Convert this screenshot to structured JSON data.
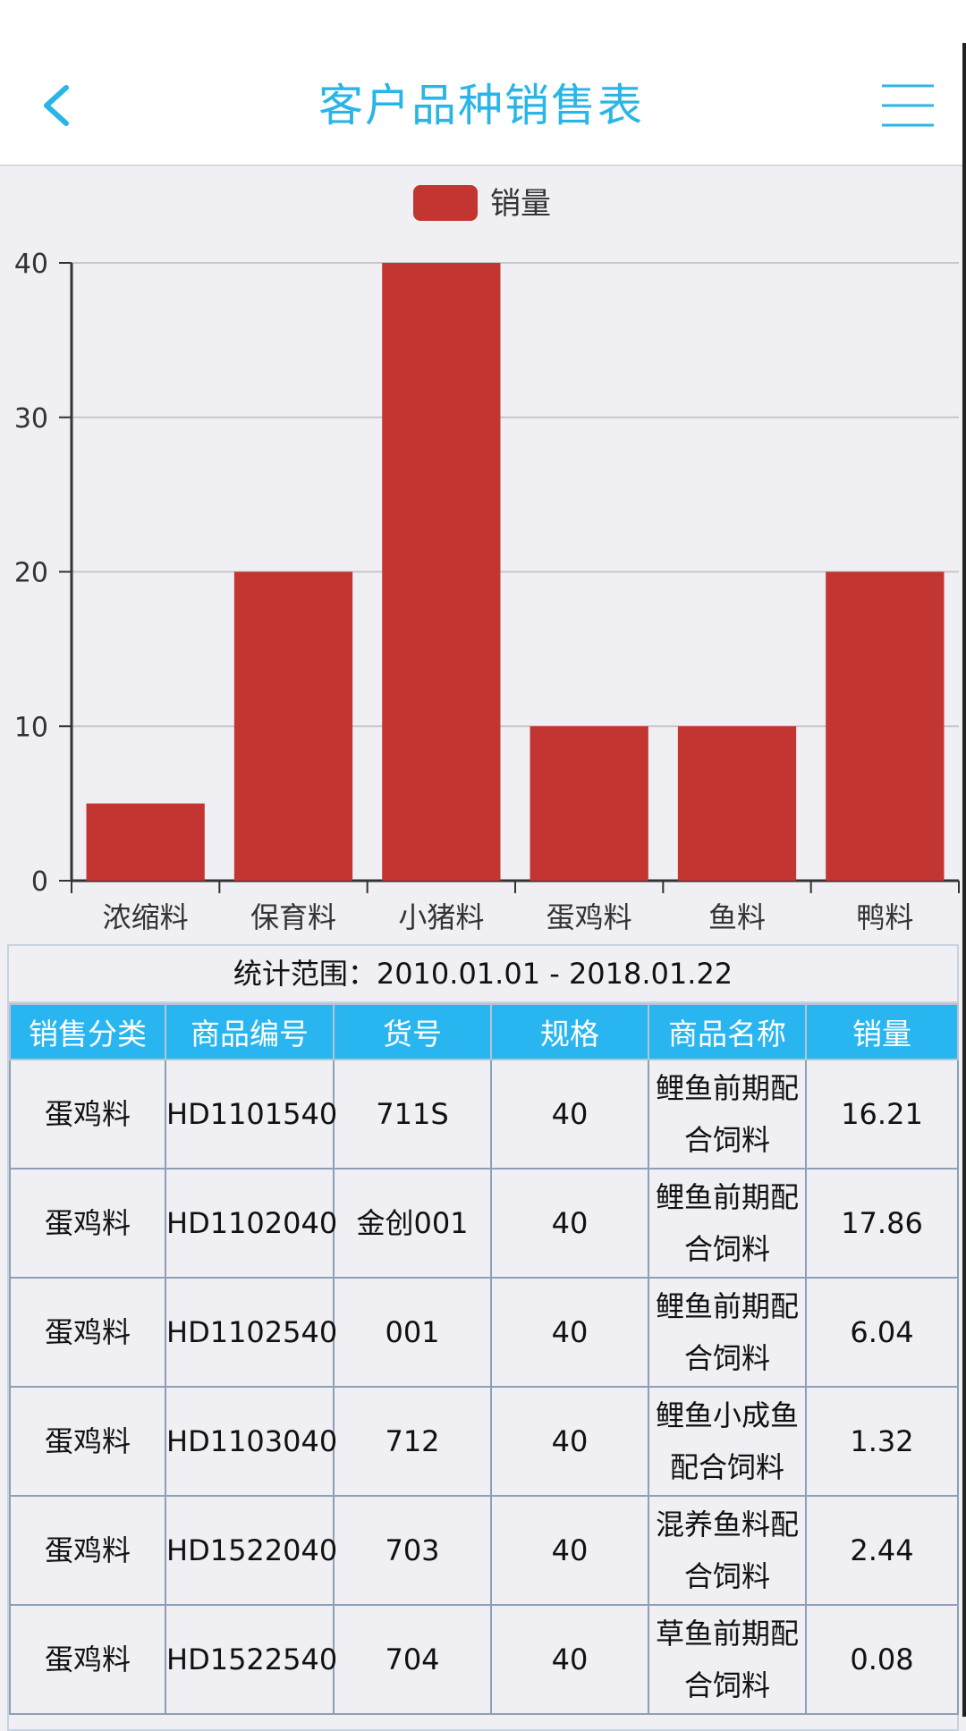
{
  "header": {
    "title": "客户品种销售表"
  },
  "icons": {
    "back": "chevron-left-icon",
    "menu": "hamburger-menu-icon"
  },
  "colors": {
    "accent": "#29b6e6",
    "bar": "#c23531",
    "table_header": "#29b6f0"
  },
  "chart_data": {
    "type": "bar",
    "categories": [
      "浓缩料",
      "保育料",
      "小猪料",
      "蛋鸡料",
      "鱼料",
      "鸭料"
    ],
    "series": [
      {
        "name": "销量",
        "values": [
          5,
          20,
          40,
          10,
          10,
          20
        ]
      }
    ],
    "ylim": [
      0,
      40
    ],
    "yticks": [
      "0",
      "10",
      "20",
      "30",
      "40"
    ],
    "legend": "top-center",
    "grid": true
  },
  "table": {
    "range_text": "统计范围：2010.01.01 - 2018.01.22",
    "columns": [
      "销售分类",
      "商品编号",
      "货号",
      "规格",
      "商品名称",
      "销量"
    ],
    "rows": [
      {
        "category": "蛋鸡料",
        "code": "HD1101540",
        "item_no": "711S",
        "spec": "40",
        "name_line1": "鲤鱼前期配",
        "name_line2": "合饲料",
        "sales": "16.21"
      },
      {
        "category": "蛋鸡料",
        "code": "HD1102040",
        "item_no": "金创001",
        "spec": "40",
        "name_line1": "鲤鱼前期配",
        "name_line2": "合饲料",
        "sales": "17.86"
      },
      {
        "category": "蛋鸡料",
        "code": "HD1102540",
        "item_no": "001",
        "spec": "40",
        "name_line1": "鲤鱼前期配",
        "name_line2": "合饲料",
        "sales": "6.04"
      },
      {
        "category": "蛋鸡料",
        "code": "HD1103040",
        "item_no": "712",
        "spec": "40",
        "name_line1": "鲤鱼小成鱼",
        "name_line2": "配合饲料",
        "sales": "1.32"
      },
      {
        "category": "蛋鸡料",
        "code": "HD1522040",
        "item_no": "703",
        "spec": "40",
        "name_line1": "混养鱼料配",
        "name_line2": "合饲料",
        "sales": "2.44"
      },
      {
        "category": "蛋鸡料",
        "code": "HD1522540",
        "item_no": "704",
        "spec": "40",
        "name_line1": "草鱼前期配",
        "name_line2": "合饲料",
        "sales": "0.08"
      }
    ]
  }
}
